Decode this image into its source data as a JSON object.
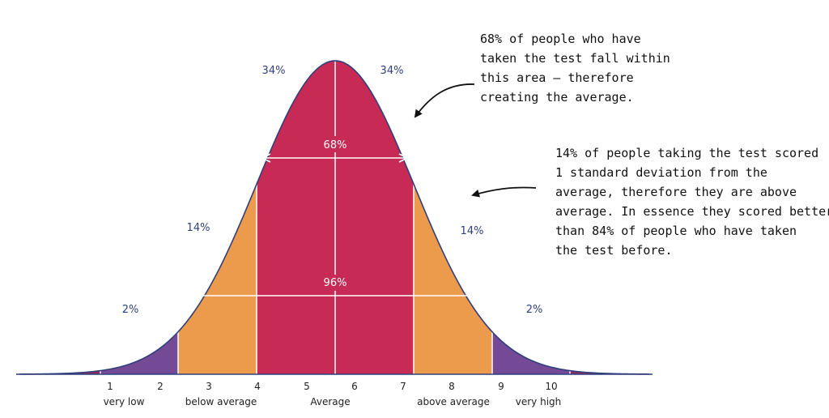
{
  "colors": {
    "tail": "#8e2a63",
    "very": "#744a96",
    "near": "#eb9b4b",
    "center": "#c72b55",
    "outline": "#2f3f7a",
    "label": "#2f3f7a",
    "white": "#ffffff"
  },
  "percent_labels": {
    "center_left": "34%",
    "center_right": "34%",
    "near_left": "14%",
    "near_right": "14%",
    "far_left": "2%",
    "far_right": "2%",
    "inner_68": "68%",
    "inner_96": "96%"
  },
  "ticks": [
    "1",
    "2",
    "3",
    "4",
    "5",
    "6",
    "7",
    "8",
    "9",
    "10"
  ],
  "categories": [
    "very low",
    "below average",
    "Average",
    "above average",
    "very high"
  ],
  "note_top": [
    "68% of people who have",
    "taken the test fall within",
    "this area – therefore",
    "creating the average."
  ],
  "note_right": [
    "14% of people taking the test scored",
    "1 standard deviation from the",
    "average, therefore they are above",
    "average. In essence they scored better",
    "than 84% of people who have taken",
    "the test before."
  ]
}
